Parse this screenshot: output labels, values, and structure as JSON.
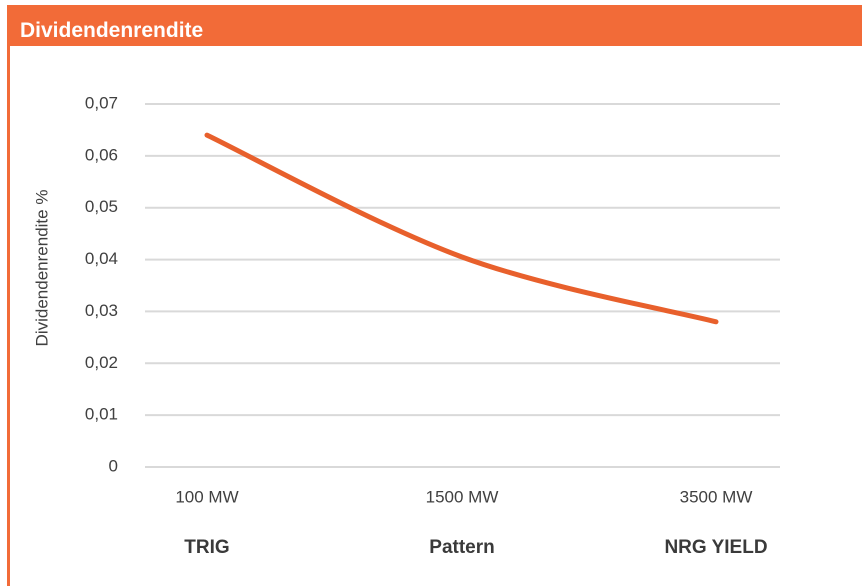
{
  "chart_data": {
    "type": "line",
    "title": "Dividendenrendite",
    "y_label": "Dividendenrendite %",
    "categories": [
      "100 MW",
      "1500 MW",
      "3500 MW"
    ],
    "company_labels": [
      "TRIG",
      "Pattern",
      "NRG YIELD"
    ],
    "values": [
      0.064,
      0.0405,
      0.028
    ],
    "color": "#e8602c",
    "ylim": [
      0,
      0.07
    ],
    "yticks": [
      0,
      {
        "value": 0.01,
        "label": "0,01"
      },
      {
        "value": 0.02,
        "label": "0,02"
      },
      {
        "value": 0.03,
        "label": "0,03"
      },
      {
        "value": 0.04,
        "label": "0,04"
      },
      {
        "value": 0.05,
        "label": "0,05"
      },
      {
        "value": 0.06,
        "label": "0,06"
      },
      {
        "value": 0.07,
        "label": "0,07"
      }
    ],
    "grid": true
  }
}
